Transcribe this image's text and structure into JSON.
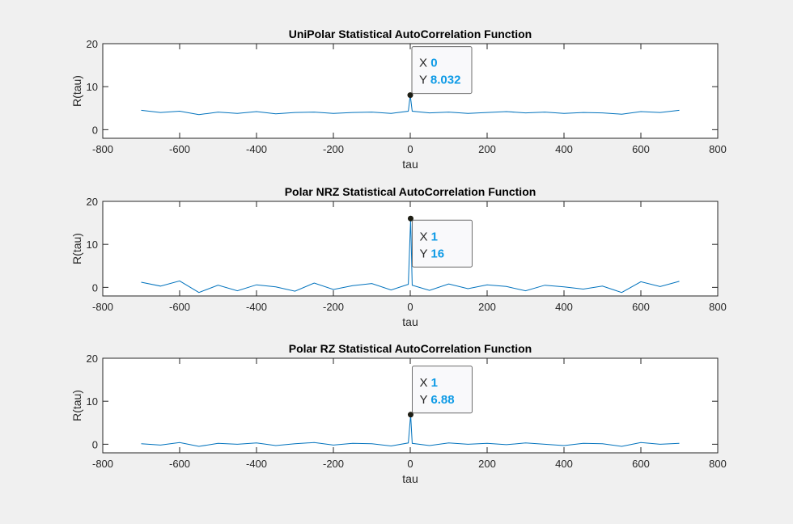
{
  "colors": {
    "series": "#0072bd",
    "datatip_value": "#0f9be6"
  },
  "chart_data": [
    {
      "type": "line",
      "title": "UniPolar Statistical AutoCorrelation Function",
      "xlabel": "tau",
      "ylabel": "R(tau)",
      "xlim": [
        -800,
        800
      ],
      "ylim": [
        -2,
        20
      ],
      "xticks": [
        -800,
        -600,
        -400,
        -200,
        0,
        200,
        400,
        600,
        800
      ],
      "yticks": [
        0,
        10,
        20
      ],
      "grid": false,
      "series": [
        {
          "x": [
            -700,
            -650,
            -600,
            -550,
            -500,
            -450,
            -400,
            -350,
            -300,
            -250,
            -200,
            -150,
            -100,
            -50,
            -5,
            0,
            5,
            50,
            100,
            150,
            200,
            250,
            300,
            350,
            400,
            450,
            500,
            550,
            600,
            650,
            700
          ],
          "y": [
            4.5,
            4.0,
            4.3,
            3.5,
            4.1,
            3.8,
            4.2,
            3.7,
            4.0,
            4.1,
            3.8,
            4.0,
            4.1,
            3.8,
            4.3,
            8.032,
            4.3,
            3.9,
            4.1,
            3.8,
            4.0,
            4.2,
            3.9,
            4.1,
            3.8,
            4.0,
            3.9,
            3.6,
            4.2,
            4.0,
            4.5
          ]
        }
      ],
      "datatip": {
        "x": 0,
        "y": 8.032,
        "x_label": "X",
        "y_label": "Y",
        "x_text": "0",
        "y_text": "8.032"
      }
    },
    {
      "type": "line",
      "title": "Polar NRZ Statistical AutoCorrelation Function",
      "xlabel": "tau",
      "ylabel": "R(tau)",
      "xlim": [
        -800,
        800
      ],
      "ylim": [
        -2,
        20
      ],
      "xticks": [
        -800,
        -600,
        -400,
        -200,
        0,
        200,
        400,
        600,
        800
      ],
      "yticks": [
        0,
        10,
        20
      ],
      "grid": false,
      "series": [
        {
          "x": [
            -700,
            -650,
            -600,
            -550,
            -500,
            -450,
            -400,
            -350,
            -300,
            -250,
            -200,
            -150,
            -100,
            -50,
            -5,
            1,
            5,
            50,
            100,
            150,
            200,
            250,
            300,
            350,
            400,
            450,
            500,
            550,
            600,
            650,
            700
          ],
          "y": [
            1.2,
            0.3,
            1.5,
            -1.2,
            0.5,
            -0.8,
            0.6,
            0.1,
            -0.9,
            1.0,
            -0.5,
            0.4,
            0.9,
            -0.6,
            0.7,
            16,
            0.5,
            -0.7,
            0.8,
            -0.3,
            0.6,
            0.2,
            -0.8,
            0.5,
            0.1,
            -0.4,
            0.3,
            -1.2,
            1.3,
            0.2,
            1.4
          ]
        }
      ],
      "datatip": {
        "x": 1,
        "y": 16,
        "x_label": "X",
        "y_label": "Y",
        "x_text": "1",
        "y_text": "16"
      }
    },
    {
      "type": "line",
      "title": "Polar RZ Statistical AutoCorrelation Function",
      "xlabel": "tau",
      "ylabel": "R(tau)",
      "xlim": [
        -800,
        800
      ],
      "ylim": [
        -2,
        20
      ],
      "xticks": [
        -800,
        -600,
        -400,
        -200,
        0,
        200,
        400,
        600,
        800
      ],
      "yticks": [
        0,
        10,
        20
      ],
      "grid": false,
      "series": [
        {
          "x": [
            -700,
            -650,
            -600,
            -550,
            -500,
            -450,
            -400,
            -350,
            -300,
            -250,
            -200,
            -150,
            -100,
            -50,
            -5,
            1,
            5,
            50,
            100,
            150,
            200,
            250,
            300,
            350,
            400,
            450,
            500,
            550,
            600,
            650,
            700
          ],
          "y": [
            0.1,
            -0.2,
            0.4,
            -0.5,
            0.2,
            0.0,
            0.3,
            -0.3,
            0.1,
            0.4,
            -0.2,
            0.2,
            0.1,
            -0.4,
            0.3,
            6.88,
            0.2,
            -0.3,
            0.3,
            0.0,
            0.2,
            -0.1,
            0.3,
            0.0,
            -0.3,
            0.2,
            0.1,
            -0.5,
            0.4,
            0.0,
            0.2
          ]
        }
      ],
      "datatip": {
        "x": 1,
        "y": 6.88,
        "x_label": "X",
        "y_label": "Y",
        "x_text": "1",
        "y_text": "6.88"
      }
    }
  ]
}
